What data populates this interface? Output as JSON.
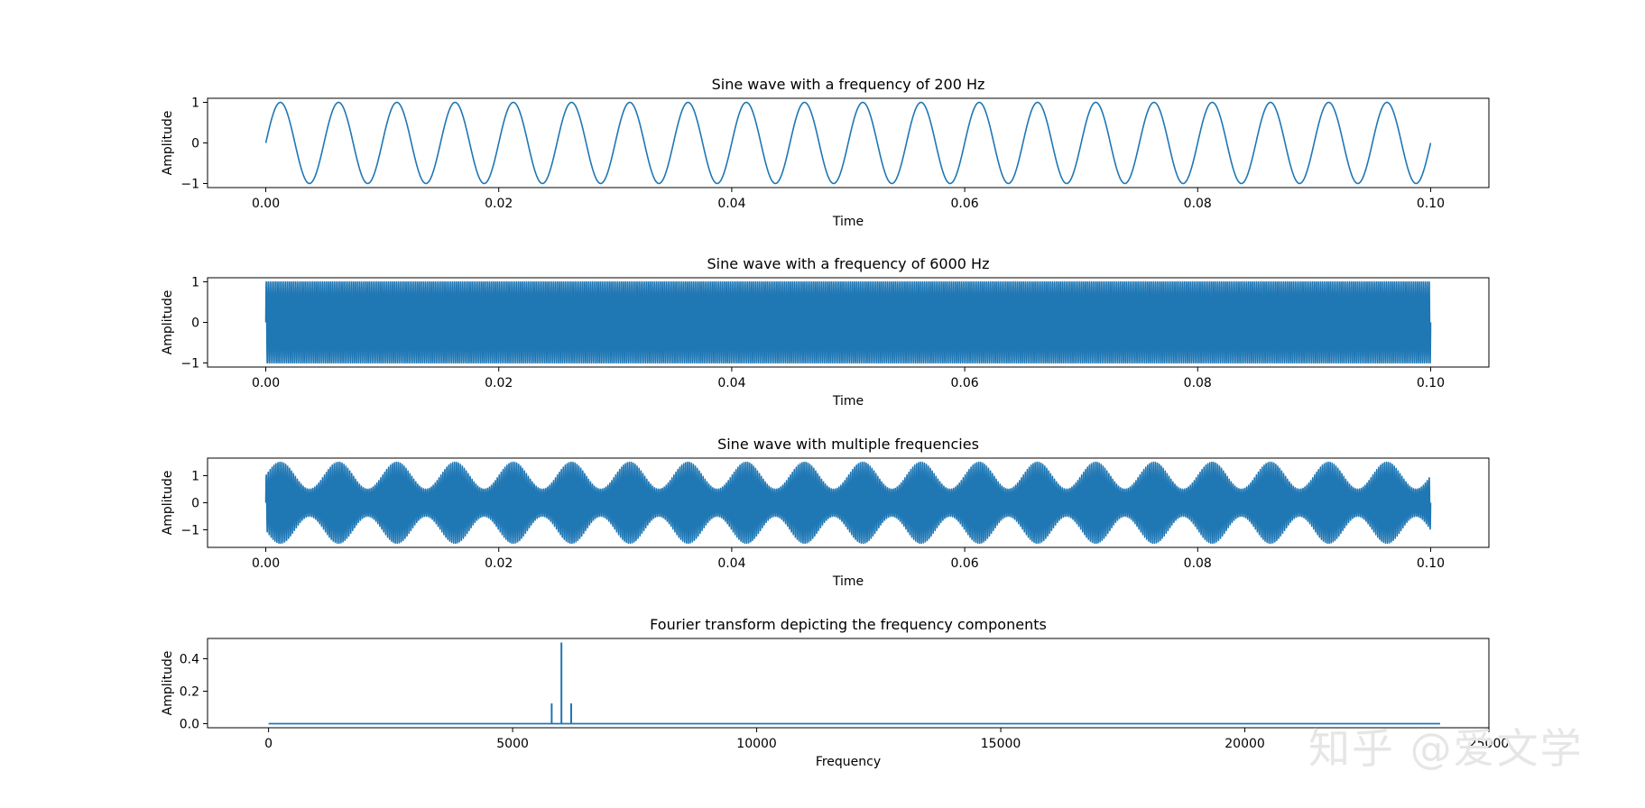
{
  "chart_data": [
    {
      "type": "line",
      "title": "Sine wave with a frequency of 200 Hz",
      "xlabel": "Time",
      "ylabel": "Amplitude",
      "xlim": [
        -0.005,
        0.105
      ],
      "ylim": [
        -1.1,
        1.1
      ],
      "x_ticks": [
        0.0,
        0.02,
        0.04,
        0.06,
        0.08,
        0.1
      ],
      "x_tick_labels": [
        "0.00",
        "0.02",
        "0.04",
        "0.06",
        "0.08",
        "0.10"
      ],
      "y_ticks": [
        -1,
        0,
        1
      ],
      "y_tick_labels": [
        "−1",
        "0",
        "1"
      ],
      "series": [
        {
          "signal": "sine",
          "frequency_hz": 200,
          "amplitude": 1,
          "t_start": 0,
          "t_end": 0.1
        }
      ]
    },
    {
      "type": "line",
      "title": "Sine wave with a frequency of 6000 Hz",
      "xlabel": "Time",
      "ylabel": "Amplitude",
      "xlim": [
        -0.005,
        0.105
      ],
      "ylim": [
        -1.1,
        1.1
      ],
      "x_ticks": [
        0.0,
        0.02,
        0.04,
        0.06,
        0.08,
        0.1
      ],
      "x_tick_labels": [
        "0.00",
        "0.02",
        "0.04",
        "0.06",
        "0.08",
        "0.10"
      ],
      "y_ticks": [
        -1,
        0,
        1
      ],
      "y_tick_labels": [
        "−1",
        "0",
        "1"
      ],
      "series": [
        {
          "signal": "sine",
          "frequency_hz": 6000,
          "amplitude": 1,
          "t_start": 0,
          "t_end": 0.1
        }
      ]
    },
    {
      "type": "line",
      "title": "Sine wave with multiple frequencies",
      "xlabel": "Time",
      "ylabel": "Amplitude",
      "xlim": [
        -0.005,
        0.105
      ],
      "ylim": [
        -1.65,
        1.65
      ],
      "x_ticks": [
        0.0,
        0.02,
        0.04,
        0.06,
        0.08,
        0.1
      ],
      "x_tick_labels": [
        "0.00",
        "0.02",
        "0.04",
        "0.06",
        "0.08",
        "0.10"
      ],
      "y_ticks": [
        -1,
        0,
        1
      ],
      "y_tick_labels": [
        "−1",
        "0",
        "1"
      ],
      "series": [
        {
          "signal": "am_sine",
          "carrier_hz": 6000,
          "modulation_hz": 200,
          "carrier_amplitude": 1,
          "modulation_depth": 0.5,
          "t_start": 0,
          "t_end": 0.1
        }
      ]
    },
    {
      "type": "line",
      "title": "Fourier transform depicting the frequency components",
      "xlabel": "Frequency",
      "ylabel": "Amplitude",
      "xlim": [
        -1250,
        25000
      ],
      "ylim": [
        -0.025,
        0.525
      ],
      "x_ticks": [
        0,
        5000,
        10000,
        15000,
        20000,
        25000
      ],
      "x_tick_labels": [
        "0",
        "5000",
        "10000",
        "15000",
        "20000",
        "25000"
      ],
      "y_ticks": [
        0.0,
        0.2,
        0.4
      ],
      "y_tick_labels": [
        "0.0",
        "0.2",
        "0.4"
      ],
      "x_range": [
        0,
        24000
      ],
      "peaks": [
        {
          "x": 5800,
          "y": 0.125
        },
        {
          "x": 6000,
          "y": 0.5
        },
        {
          "x": 6200,
          "y": 0.125
        }
      ]
    }
  ],
  "watermark": "知乎 @爱文学",
  "colors": {
    "line": "#1f77b4",
    "axes": "#000000",
    "watermark": "#e6e6e6"
  }
}
